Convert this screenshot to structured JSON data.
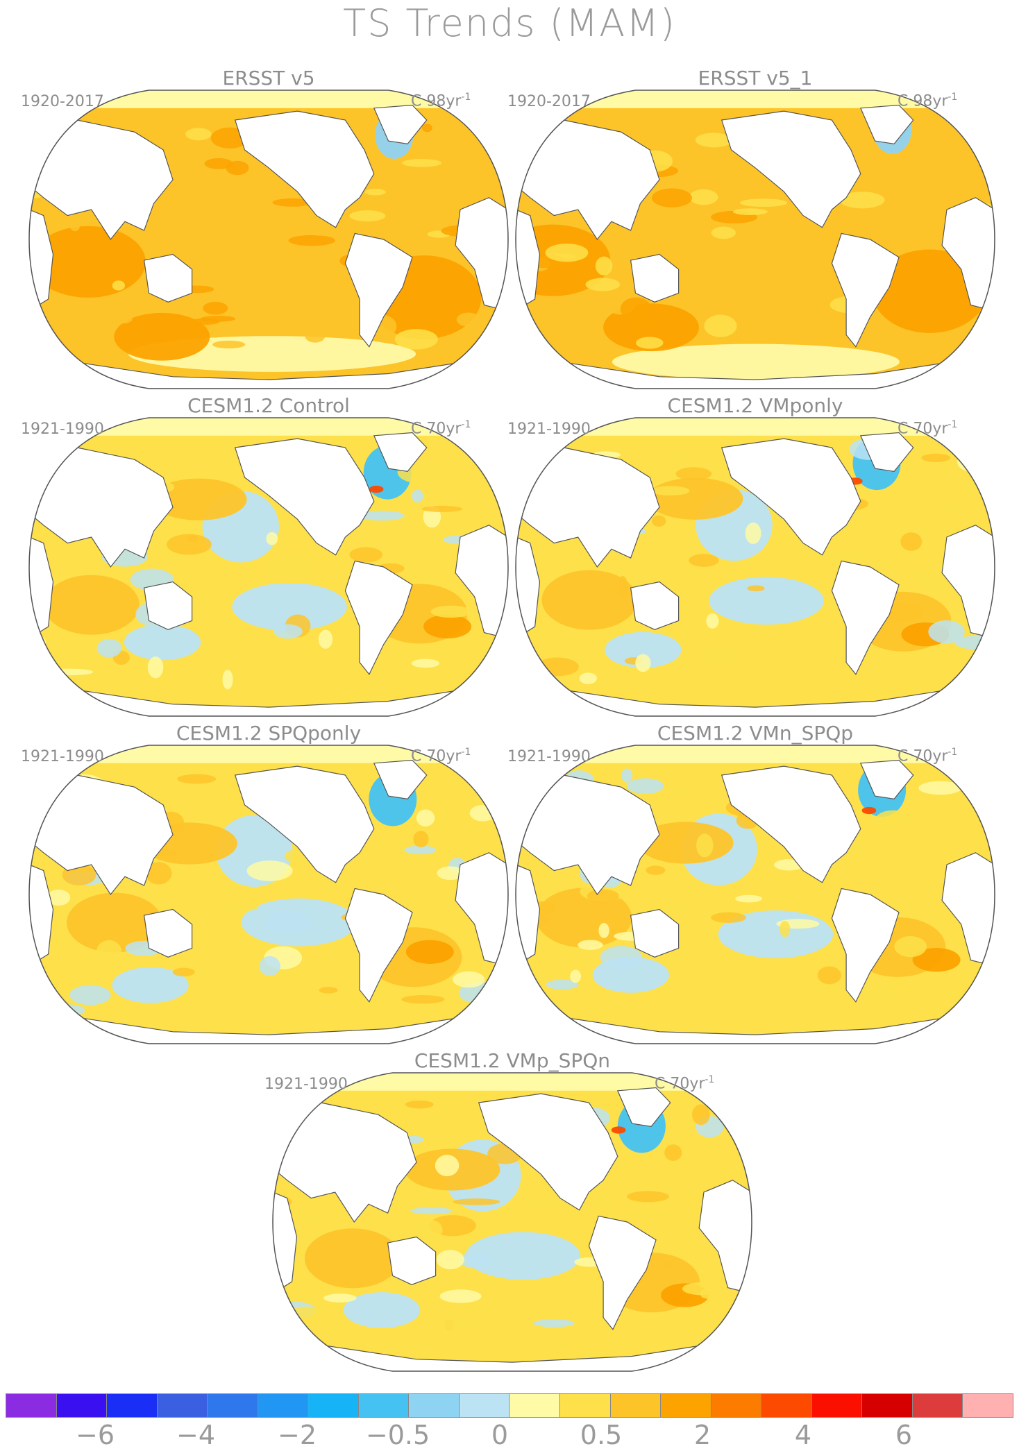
{
  "title": "TS Trends (MAM)",
  "panels": [
    {
      "title": "ERSST v5",
      "period": "1920-2017",
      "units_prefix": "C 98yr",
      "units_exp": "-1",
      "field": "warm"
    },
    {
      "title": "ERSST v5_1",
      "period": "1920-2017",
      "units_prefix": "C 98yr",
      "units_exp": "-1",
      "field": "warm"
    },
    {
      "title": "CESM1.2 Control",
      "period": "1921-1990",
      "units_prefix": "C 70yr",
      "units_exp": "-1",
      "field": "mixed"
    },
    {
      "title": "CESM1.2 VMponly",
      "period": "1921-1990",
      "units_prefix": "C 70yr",
      "units_exp": "-1",
      "field": "mixed"
    },
    {
      "title": "CESM1.2 SPQponly",
      "period": "1921-1990",
      "units_prefix": "C 70yr",
      "units_exp": "-1",
      "field": "mixed"
    },
    {
      "title": "CESM1.2 VMn_SPQp",
      "period": "1921-1990",
      "units_prefix": "C 70yr",
      "units_exp": "-1",
      "field": "mixed"
    },
    {
      "title": "CESM1.2 VMp_SPQn",
      "period": "1921-1990",
      "units_prefix": "C 70yr",
      "units_exp": "-1",
      "field": "mixed"
    }
  ],
  "colorbar": {
    "colors": [
      "#8b2be2",
      "#3a10f0",
      "#1a2ef5",
      "#3a5fe0",
      "#2f78ec",
      "#2196f3",
      "#16b3f7",
      "#45c2f2",
      "#8fd3f3",
      "#bce3f4",
      "#fffaa5",
      "#fde04a",
      "#fdc42a",
      "#fca300",
      "#fc7c00",
      "#fc4a00",
      "#fb1000",
      "#d60000",
      "#dc3c3c",
      "#ffb1b1"
    ],
    "tick_labels": [
      "-6",
      "-4",
      "-2",
      "-0.5",
      "0",
      "0.5",
      "2",
      "4",
      "6"
    ]
  }
}
